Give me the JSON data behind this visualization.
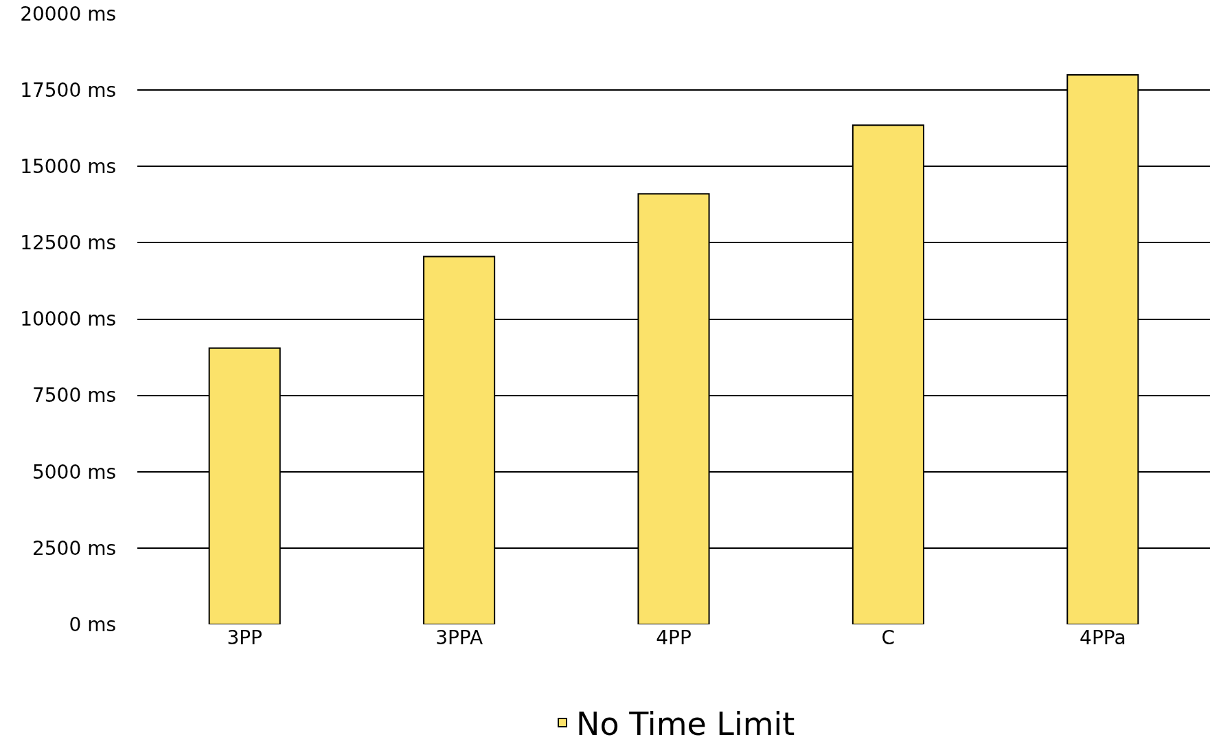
{
  "chart_data": {
    "type": "bar",
    "categories": [
      "3PP",
      "3PPA",
      "4PP",
      "C",
      "4PPa"
    ],
    "series": [
      {
        "name": "No Time Limit",
        "color": "#fbe26a",
        "values": [
          9050,
          12050,
          14100,
          16350,
          18000
        ]
      }
    ],
    "ylim": [
      0,
      20000
    ],
    "yticks": [
      {
        "value": 0,
        "label": "0 ms"
      },
      {
        "value": 2500,
        "label": "2500 ms"
      },
      {
        "value": 5000,
        "label": "5000 ms"
      },
      {
        "value": 7500,
        "label": "7500 ms"
      },
      {
        "value": 10000,
        "label": "10000 ms"
      },
      {
        "value": 12500,
        "label": "12500 ms"
      },
      {
        "value": 15000,
        "label": "15000 ms"
      },
      {
        "value": 17500,
        "label": "17500 ms"
      },
      {
        "value": 20000,
        "label": "20000 ms"
      }
    ],
    "grid": "y",
    "legend": "bottom"
  }
}
